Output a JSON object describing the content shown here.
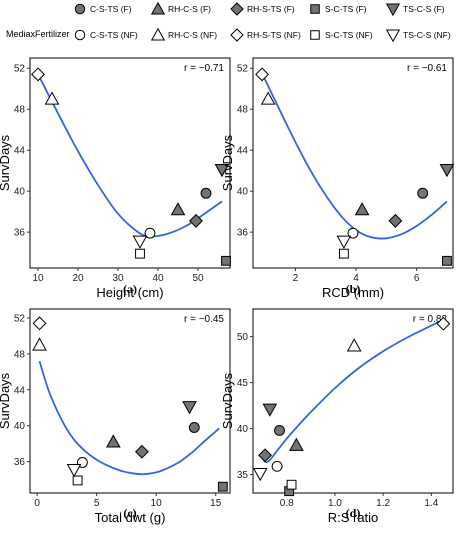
{
  "legend": {
    "title": "MediaxFertilizer",
    "items": [
      {
        "label": "C-S-TS (F)",
        "shape": "circle",
        "fill": "#737373"
      },
      {
        "label": "RH-C-S (F)",
        "shape": "triangle-up",
        "fill": "#737373"
      },
      {
        "label": "RH-S-TS (F)",
        "shape": "diamond",
        "fill": "#737373"
      },
      {
        "label": "S-C-TS (F)",
        "shape": "square",
        "fill": "#737373"
      },
      {
        "label": "TS-C-S (F)",
        "shape": "triangle-down",
        "fill": "#737373"
      },
      {
        "label": "C-S-TS (NF)",
        "shape": "circle",
        "fill": "#ffffff"
      },
      {
        "label": "RH-C-S (NF)",
        "shape": "triangle-up",
        "fill": "#ffffff"
      },
      {
        "label": "RH-S-TS (NF)",
        "shape": "diamond",
        "fill": "#ffffff"
      },
      {
        "label": "S-C-TS (NF)",
        "shape": "square",
        "fill": "#ffffff"
      },
      {
        "label": "TS-C-S (NF)",
        "shape": "triangle-down",
        "fill": "#ffffff"
      }
    ]
  },
  "colors": {
    "fit_line": "#3366dd",
    "filled_marker": "#737373",
    "open_marker": "#ffffff",
    "marker_stroke": "#000000"
  },
  "chart_data": [
    {
      "type": "scatter",
      "panel": "(a)",
      "xlabel": "Height (cm)",
      "ylabel": "SurvDays",
      "annotation": "r = −0.71",
      "xlim": [
        8,
        58
      ],
      "ylim": [
        32.5,
        53
      ],
      "xticks": [
        10,
        20,
        30,
        40,
        50
      ],
      "yticks": [
        36,
        40,
        44,
        48,
        52
      ],
      "points": [
        {
          "series": "C-S-TS (F)",
          "x": 52,
          "y": 39.8
        },
        {
          "series": "RH-C-S (F)",
          "x": 45,
          "y": 38.2
        },
        {
          "series": "RH-S-TS (F)",
          "x": 49.5,
          "y": 37.1
        },
        {
          "series": "S-C-TS (F)",
          "x": 57,
          "y": 33.2
        },
        {
          "series": "TS-C-S (F)",
          "x": 56,
          "y": 42.1
        },
        {
          "series": "C-S-TS (NF)",
          "x": 38,
          "y": 35.9
        },
        {
          "series": "RH-C-S (NF)",
          "x": 13.5,
          "y": 49.0
        },
        {
          "series": "RH-S-TS (NF)",
          "x": 10,
          "y": 51.4
        },
        {
          "series": "S-C-TS (NF)",
          "x": 35.5,
          "y": 33.9
        },
        {
          "series": "TS-C-S (NF)",
          "x": 35.5,
          "y": 35.1
        }
      ],
      "fit": {
        "x": [
          9.5,
          15,
          20,
          25,
          30,
          35,
          38,
          42,
          47,
          52,
          56
        ],
        "y": [
          51.8,
          47.6,
          43.9,
          40.6,
          37.8,
          36.0,
          35.6,
          35.8,
          36.6,
          37.9,
          39.0
        ]
      }
    },
    {
      "type": "scatter",
      "panel": "(b)",
      "xlabel": "RCD (mm)",
      "ylabel": "SurvDays",
      "annotation": "r = −0.61",
      "xlim": [
        0.6,
        7.2
      ],
      "ylim": [
        32.5,
        53
      ],
      "xticks": [
        2,
        4,
        6
      ],
      "yticks": [
        36,
        40,
        44,
        48,
        52
      ],
      "points": [
        {
          "series": "C-S-TS (F)",
          "x": 6.2,
          "y": 39.8
        },
        {
          "series": "RH-C-S (F)",
          "x": 4.2,
          "y": 38.2
        },
        {
          "series": "RH-S-TS (F)",
          "x": 5.3,
          "y": 37.1
        },
        {
          "series": "S-C-TS (F)",
          "x": 7.0,
          "y": 33.2
        },
        {
          "series": "TS-C-S (F)",
          "x": 7.0,
          "y": 42.1
        },
        {
          "series": "C-S-TS (NF)",
          "x": 3.9,
          "y": 35.9
        },
        {
          "series": "RH-C-S (NF)",
          "x": 1.1,
          "y": 49.0
        },
        {
          "series": "RH-S-TS (NF)",
          "x": 0.9,
          "y": 51.4
        },
        {
          "series": "S-C-TS (NF)",
          "x": 3.6,
          "y": 33.9
        },
        {
          "series": "TS-C-S (NF)",
          "x": 3.6,
          "y": 35.1
        }
      ],
      "fit": {
        "x": [
          0.9,
          1.5,
          2.0,
          2.5,
          3.0,
          3.5,
          4.0,
          4.5,
          5.0,
          5.5,
          6.0,
          6.5,
          7.0
        ],
        "y": [
          51.5,
          47.8,
          44.8,
          42.0,
          39.6,
          37.6,
          36.2,
          35.5,
          35.4,
          35.8,
          36.6,
          37.7,
          39.0
        ]
      }
    },
    {
      "type": "scatter",
      "panel": "(c)",
      "xlabel": "Total dwt (g)",
      "ylabel": "SurvDays",
      "annotation": "r = −0.45",
      "xlim": [
        -0.6,
        16.2
      ],
      "ylim": [
        32.5,
        53
      ],
      "xticks": [
        0,
        5,
        10,
        15
      ],
      "yticks": [
        36,
        40,
        44,
        48,
        52
      ],
      "points": [
        {
          "series": "C-S-TS (F)",
          "x": 13.2,
          "y": 39.8
        },
        {
          "series": "RH-C-S (F)",
          "x": 6.4,
          "y": 38.2
        },
        {
          "series": "RH-S-TS (F)",
          "x": 8.8,
          "y": 37.1
        },
        {
          "series": "S-C-TS (F)",
          "x": 15.6,
          "y": 33.2
        },
        {
          "series": "TS-C-S (F)",
          "x": 12.8,
          "y": 42.1
        },
        {
          "series": "C-S-TS (NF)",
          "x": 3.8,
          "y": 35.9
        },
        {
          "series": "RH-C-S (NF)",
          "x": 0.2,
          "y": 49.0
        },
        {
          "series": "RH-S-TS (NF)",
          "x": 0.2,
          "y": 51.4
        },
        {
          "series": "S-C-TS (NF)",
          "x": 3.4,
          "y": 33.9
        },
        {
          "series": "TS-C-S (NF)",
          "x": 3.1,
          "y": 35.1
        }
      ],
      "fit": {
        "x": [
          0.2,
          1,
          2,
          3,
          4,
          5,
          6,
          7,
          8,
          9,
          10,
          11,
          12,
          13,
          14,
          15.3
        ],
        "y": [
          47.2,
          43.8,
          40.8,
          38.6,
          37.2,
          36.2,
          35.5,
          35.0,
          34.7,
          34.6,
          34.8,
          35.3,
          36.0,
          37.0,
          38.2,
          39.7
        ]
      }
    },
    {
      "type": "scatter",
      "panel": "(d)",
      "xlabel": "R:S ratio",
      "ylabel": "SurvDays",
      "annotation": "r = 0.82",
      "xlim": [
        0.66,
        1.49
      ],
      "ylim": [
        33,
        53
      ],
      "xticks": [
        0.8,
        1.0,
        1.2,
        1.4
      ],
      "yticks": [
        35,
        40,
        45,
        50
      ],
      "points": [
        {
          "series": "C-S-TS (F)",
          "x": 0.77,
          "y": 39.8
        },
        {
          "series": "RH-C-S (F)",
          "x": 0.84,
          "y": 38.2
        },
        {
          "series": "RH-S-TS (F)",
          "x": 0.71,
          "y": 37.1
        },
        {
          "series": "S-C-TS (F)",
          "x": 0.81,
          "y": 33.2
        },
        {
          "series": "TS-C-S (F)",
          "x": 0.73,
          "y": 42.1
        },
        {
          "series": "C-S-TS (NF)",
          "x": 0.76,
          "y": 35.9
        },
        {
          "series": "RH-C-S (NF)",
          "x": 1.08,
          "y": 49.0
        },
        {
          "series": "RH-S-TS (NF)",
          "x": 1.45,
          "y": 51.4
        },
        {
          "series": "S-C-TS (NF)",
          "x": 0.82,
          "y": 33.9
        },
        {
          "series": "TS-C-S (NF)",
          "x": 0.69,
          "y": 35.1
        }
      ],
      "fit": {
        "x": [
          0.69,
          0.71,
          0.73,
          0.76,
          0.8,
          0.85,
          0.9,
          1.0,
          1.1,
          1.2,
          1.3,
          1.4,
          1.45
        ],
        "y": [
          37.3,
          36.4,
          36.6,
          37.6,
          38.9,
          40.4,
          41.8,
          44.4,
          46.6,
          48.4,
          49.9,
          51.2,
          51.8
        ]
      }
    }
  ]
}
